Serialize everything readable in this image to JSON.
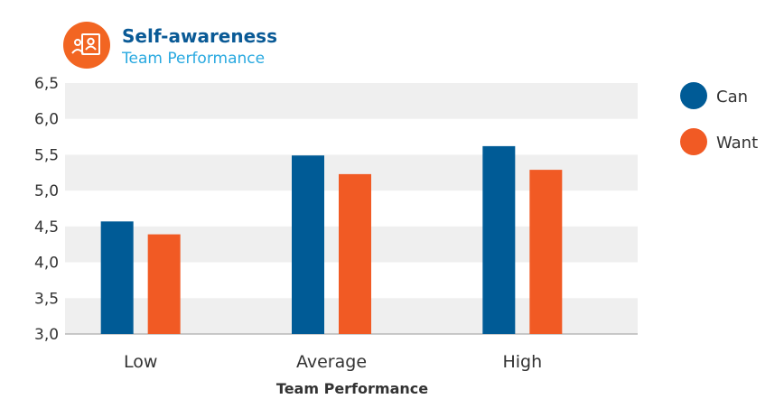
{
  "header": {
    "title": "Self-awareness",
    "subtitle": "Team Performance",
    "icon": "team-presentation-icon"
  },
  "colors": {
    "title": "#0a5a96",
    "subtitle": "#29a9e0",
    "icon_bg": "#f26522",
    "grid_band": "#efefef",
    "axis": "#9a9a9a",
    "text": "#333333"
  },
  "chart_data": {
    "type": "bar",
    "categories": [
      "Low",
      "Average",
      "High"
    ],
    "series": [
      {
        "name": "Can",
        "color": "#005b96",
        "values": [
          4.57,
          5.49,
          5.62
        ]
      },
      {
        "name": "Want",
        "color": "#f15a24",
        "values": [
          4.39,
          5.23,
          5.29
        ]
      }
    ],
    "xlabel": "Team Performance",
    "ylabel": "",
    "ylim": [
      3.0,
      6.5
    ],
    "yticks": [
      "3,0",
      "3,5",
      "4,0",
      "4,5",
      "5,0",
      "5,5",
      "6,0",
      "6,5"
    ],
    "ytick_values": [
      3.0,
      3.5,
      4.0,
      4.5,
      5.0,
      5.5,
      6.0,
      6.5
    ],
    "grid": "alternating bands",
    "legend_position": "right"
  }
}
